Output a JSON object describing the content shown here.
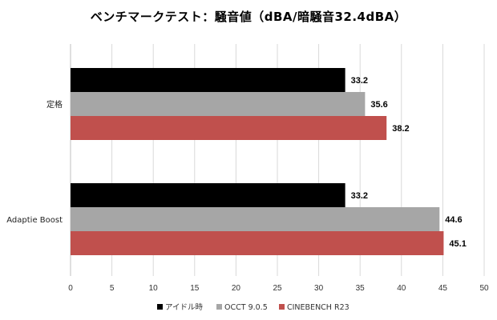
{
  "chart_data": {
    "type": "bar",
    "orientation": "horizontal",
    "title": "ベンチマークテスト：騒音値（dBA/暗騒音32.4dBA）",
    "categories": [
      "定格",
      "Adaptie Boost"
    ],
    "series": [
      {
        "name": "アイドル時",
        "color": "#000000",
        "values": [
          33.2,
          33.2
        ],
        "labels": [
          "33.2",
          "33.2"
        ]
      },
      {
        "name": "OCCT 9.0.5",
        "color": "#a6a6a6",
        "values": [
          35.6,
          44.6
        ],
        "labels": [
          "35.6",
          "44.6"
        ]
      },
      {
        "name": "CINEBENCH R23",
        "color": "#c0504d",
        "values": [
          38.2,
          45.1
        ],
        "labels": [
          "38.2",
          "45.1"
        ]
      }
    ],
    "xlim": [
      0,
      50
    ],
    "xticks": [
      "0",
      "5",
      "10",
      "15",
      "20",
      "25",
      "30",
      "35",
      "40",
      "45",
      "50"
    ],
    "grid": true,
    "legend": "bottom"
  }
}
